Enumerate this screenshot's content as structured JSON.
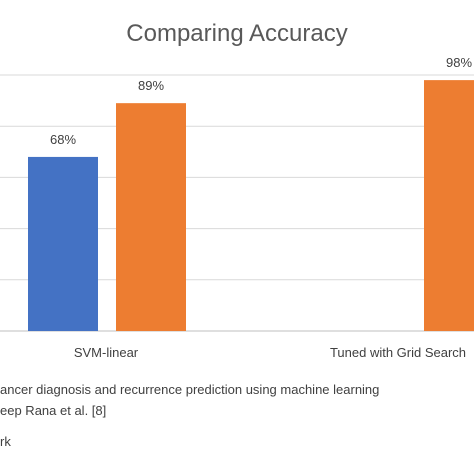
{
  "chart_data": {
    "type": "bar",
    "title": "Comparing Accuracy",
    "categories": [
      "SVM-linear",
      "Tuned with Grid Search"
    ],
    "series": [
      {
        "values": [
          68,
          null
        ],
        "data_labels": [
          "68%",
          null
        ],
        "color": "#4472c4"
      },
      {
        "values": [
          89,
          98
        ],
        "data_labels": [
          "89%",
          "98%"
        ],
        "color": "#ed7d31"
      }
    ],
    "ylim": [
      0,
      100
    ],
    "grid": true,
    "legend": [
      {
        "text": "ancer diagnosis and recurrence prediction using machine learning",
        "color": "#4472c4"
      },
      {
        "text": "eep Rana et al. [8]"
      },
      {
        "text": "rk",
        "color": "#ed7d31"
      }
    ]
  }
}
